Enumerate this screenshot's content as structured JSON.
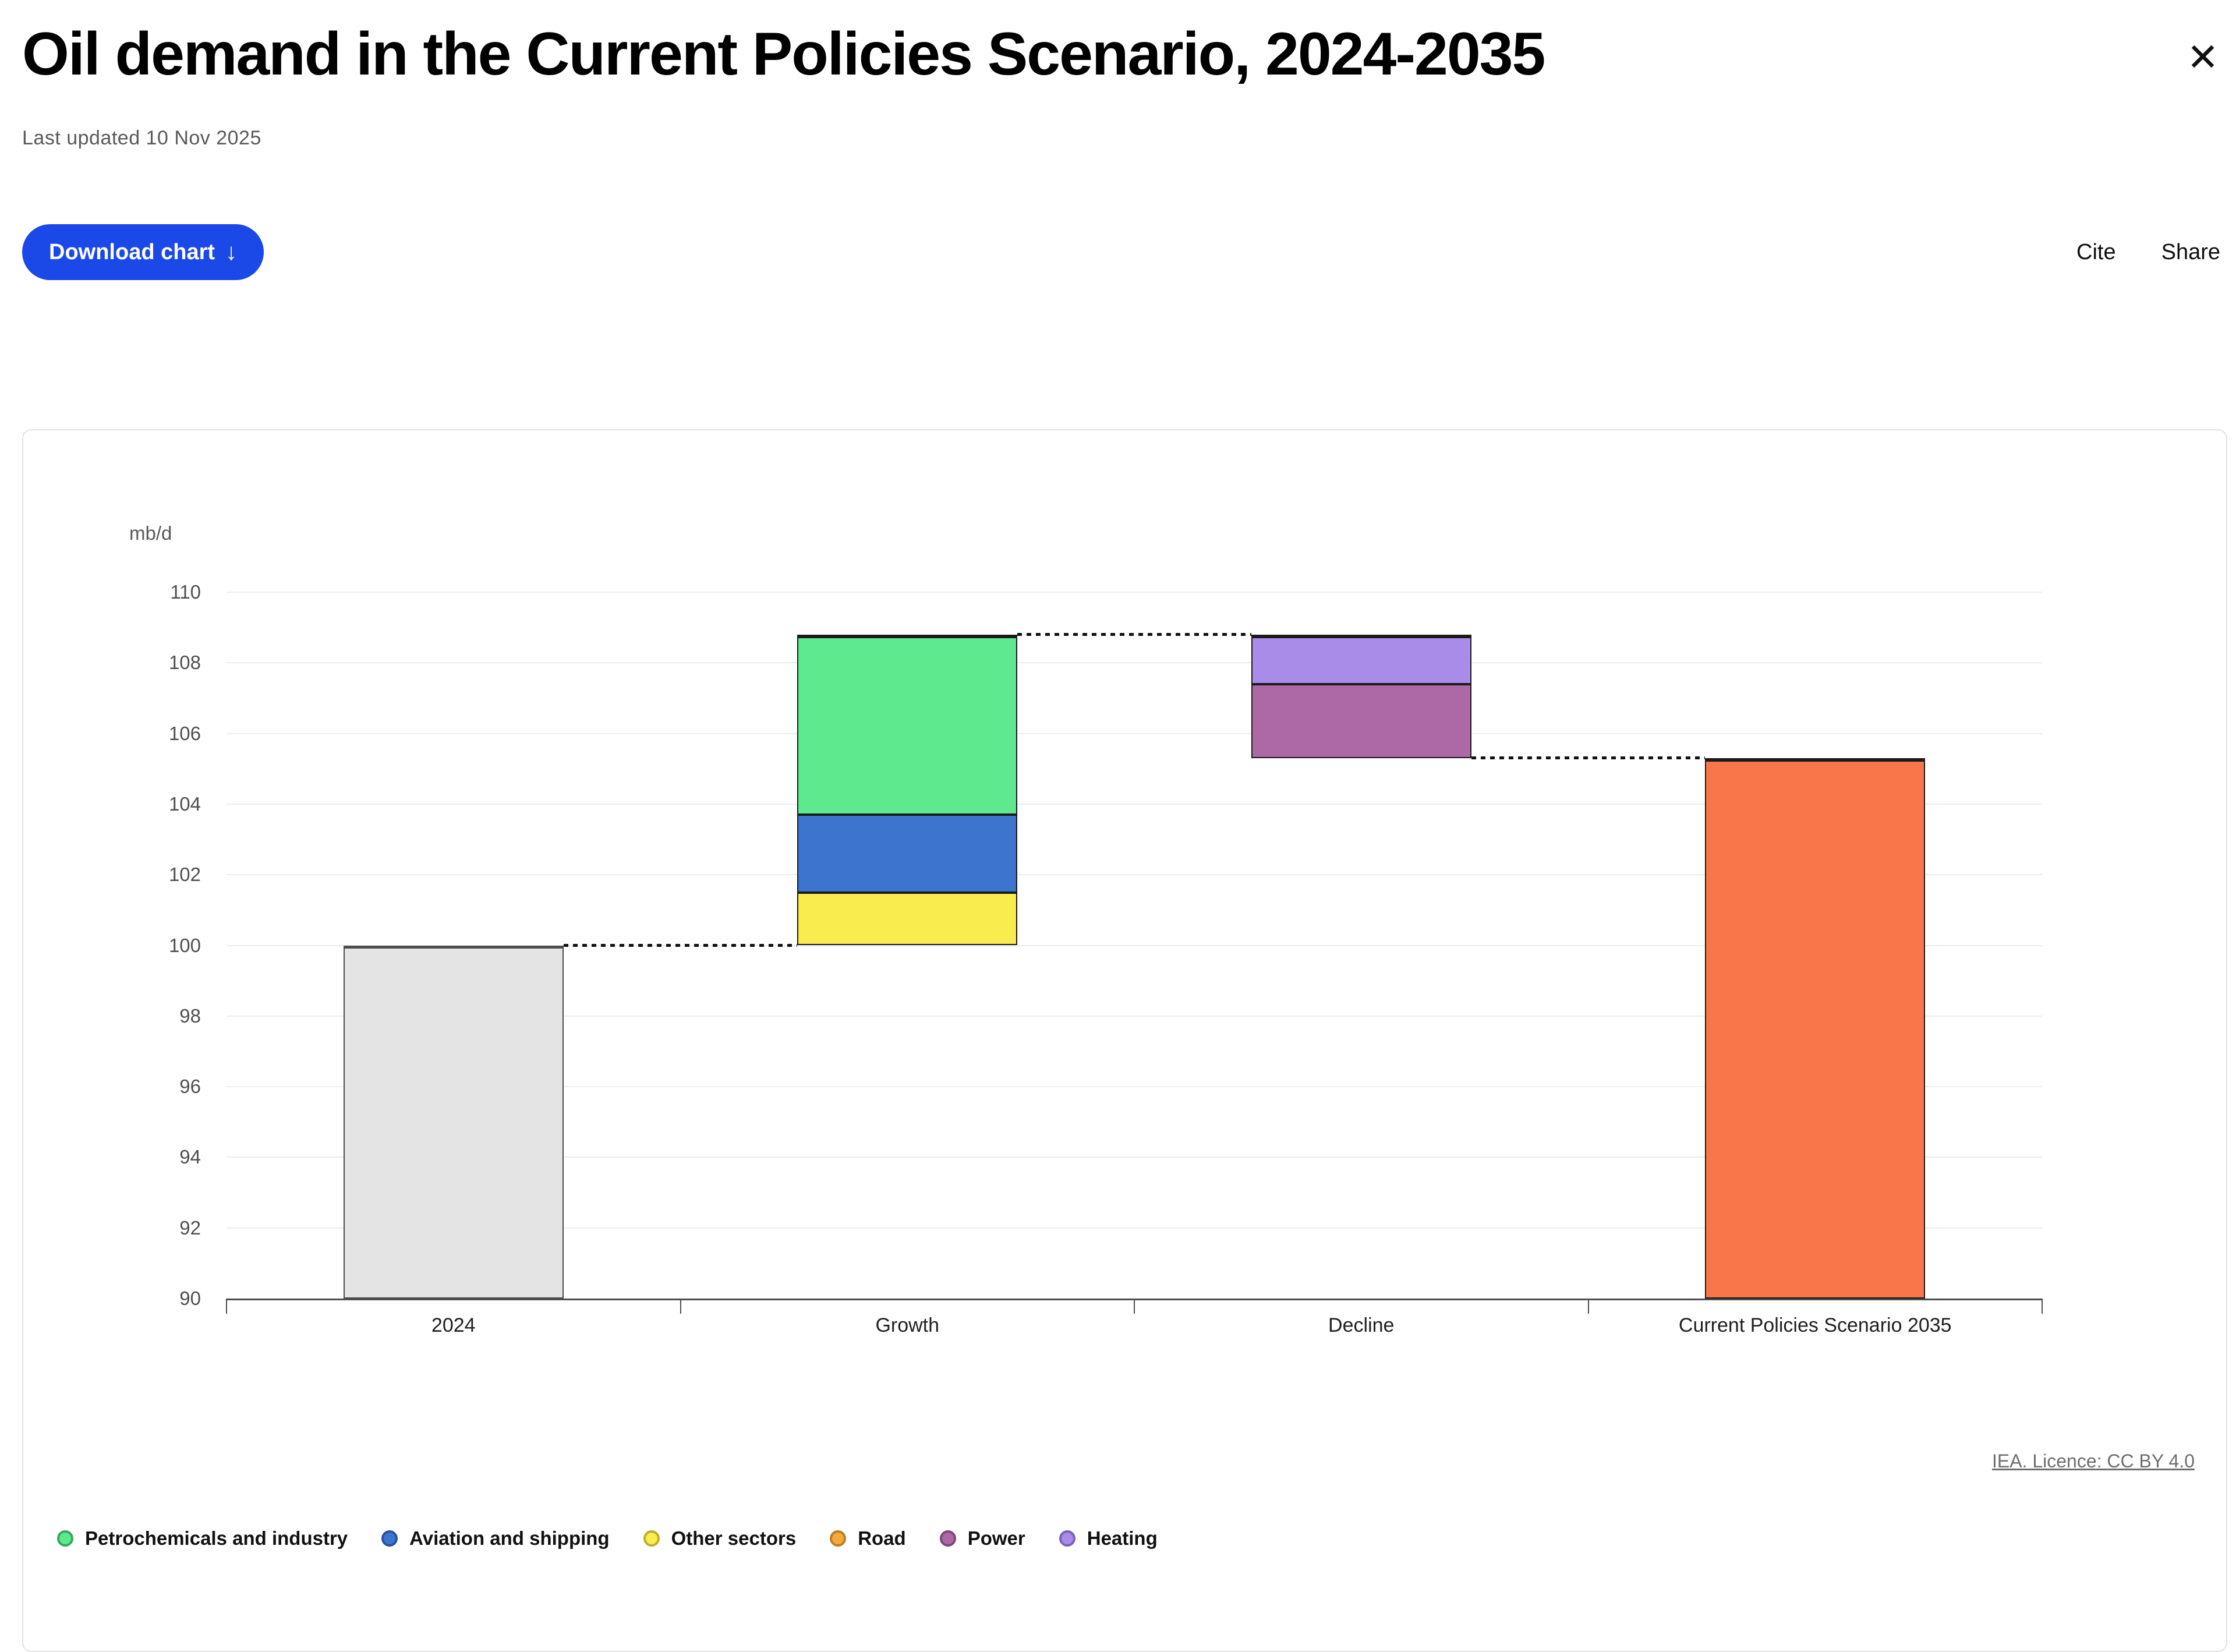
{
  "page": {
    "title": "Oil demand in the Current Policies Scenario, 2024-2035",
    "last_updated": "Last updated 10 Nov 2025",
    "close_glyph": "✕"
  },
  "toolbar": {
    "download_label": "Download chart",
    "download_arrow": "↓",
    "cite_label": "Cite",
    "share_label": "Share",
    "accent_blue": "#1B49E8"
  },
  "chart_data": {
    "type": "waterfall",
    "unit_label": "mb/d",
    "ylim": [
      90,
      110
    ],
    "ytick_step": 2,
    "yticks": [
      90,
      92,
      94,
      96,
      98,
      100,
      102,
      104,
      106,
      108,
      110
    ],
    "grid": true,
    "categories": [
      "2024",
      "Growth",
      "Decline",
      "Current Policies Scenario 2035"
    ],
    "bars": [
      {
        "category": "2024",
        "border_color": "#4d4d4d",
        "top_border": 5,
        "segments": [
          {
            "name": "2024 demand",
            "from": 90,
            "to": 100.0,
            "color": "#e4e4e4"
          }
        ]
      },
      {
        "category": "Growth",
        "border_color": "#1a1a1a",
        "top_border": 6,
        "segments": [
          {
            "name": "Other sectors",
            "from": 100.0,
            "to": 101.5,
            "color": "#F9EC4F"
          },
          {
            "name": "Aviation and shipping",
            "from": 101.5,
            "to": 103.7,
            "color": "#3D74CE"
          },
          {
            "name": "Petrochemicals and industry",
            "from": 103.7,
            "to": 108.8,
            "color": "#5FE98F"
          }
        ]
      },
      {
        "category": "Decline",
        "border_color": "#1a1a1a",
        "top_border": 6,
        "segments": [
          {
            "name": "Power",
            "from": 105.3,
            "to": 107.4,
            "color": "#AC69A6"
          },
          {
            "name": "Heating",
            "from": 107.4,
            "to": 108.8,
            "color": "#A98BE8"
          }
        ]
      },
      {
        "category": "Current Policies Scenario 2035",
        "border_color": "#1a1a1a",
        "top_border": 6,
        "segments": [
          {
            "name": "Current Policies Scenario 2035",
            "from": 90,
            "to": 105.3,
            "color": "#F8764A"
          }
        ]
      }
    ],
    "connectors": [
      {
        "value": 100.0,
        "from_bar": 0,
        "to_bar": 1
      },
      {
        "value": 108.8,
        "from_bar": 1,
        "to_bar": 2
      },
      {
        "value": 105.3,
        "from_bar": 2,
        "to_bar": 3
      }
    ],
    "source_link": "IEA. Licence: CC BY 4.0"
  },
  "legend": {
    "items": [
      {
        "label": "Petrochemicals and industry",
        "color": "#5FE98F",
        "ring": "#35a563"
      },
      {
        "label": "Aviation and shipping",
        "color": "#3D74CE",
        "ring": "#28519b"
      },
      {
        "label": "Other sectors",
        "color": "#F9EC4F",
        "ring": "#bfae27"
      },
      {
        "label": "Road",
        "color": "#F2A93D",
        "ring": "#bc7e22"
      },
      {
        "label": "Power",
        "color": "#AC69A6",
        "ring": "#7c4878"
      },
      {
        "label": "Heating",
        "color": "#A98BE8",
        "ring": "#7961b8"
      }
    ]
  }
}
